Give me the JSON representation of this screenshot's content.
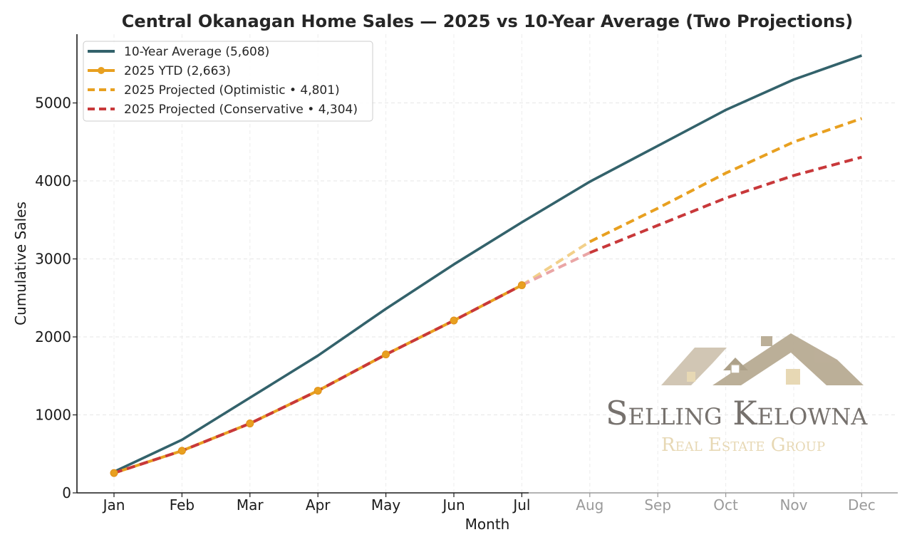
{
  "chart_data": {
    "type": "line",
    "title": "Central Okanagan Home Sales — 2025 vs 10-Year Average (Two Projections)",
    "xlabel": "Month",
    "ylabel": "Cumulative Sales",
    "categories": [
      "Jan",
      "Feb",
      "Mar",
      "Apr",
      "May",
      "Jun",
      "Jul",
      "Aug",
      "Sep",
      "Oct",
      "Nov",
      "Dec"
    ],
    "yticks": [
      0,
      1000,
      2000,
      3000,
      4000,
      5000
    ],
    "ylim": [
      0,
      5900
    ],
    "grid": true,
    "legend_position": "top-left",
    "series": [
      {
        "name": "10-Year Average (5,608)",
        "color": "#33626b",
        "style": "solid",
        "values": [
          270,
          680,
          1220,
          1760,
          2360,
          2930,
          3470,
          3990,
          4450,
          4910,
          5300,
          5608
        ]
      },
      {
        "name": "2025 YTD (2,663)",
        "color": "#e8a020",
        "style": "solid-markers",
        "values": [
          255,
          540,
          890,
          1310,
          1775,
          2210,
          2663,
          null,
          null,
          null,
          null,
          null
        ]
      },
      {
        "name": "2025 Projected (Optimistic • 4,801)",
        "color": "#e8a020",
        "style": "dashed",
        "values": [
          255,
          540,
          890,
          1310,
          1775,
          2210,
          2663,
          3220,
          3650,
          4100,
          4500,
          4801
        ]
      },
      {
        "name": "2025 Projected (Conservative • 4,304)",
        "color": "#c8383a",
        "style": "dashed",
        "values": [
          255,
          540,
          890,
          1310,
          1775,
          2210,
          2663,
          3080,
          3430,
          3780,
          4070,
          4304
        ]
      }
    ],
    "muted_categories_from_index": 7
  },
  "watermark": {
    "main": "Selling Kelowna",
    "sub": "Real Estate Group",
    "colors": {
      "roof": "#b8ab93",
      "main": "#6f6a66",
      "sub": "#e6d6b0"
    }
  }
}
